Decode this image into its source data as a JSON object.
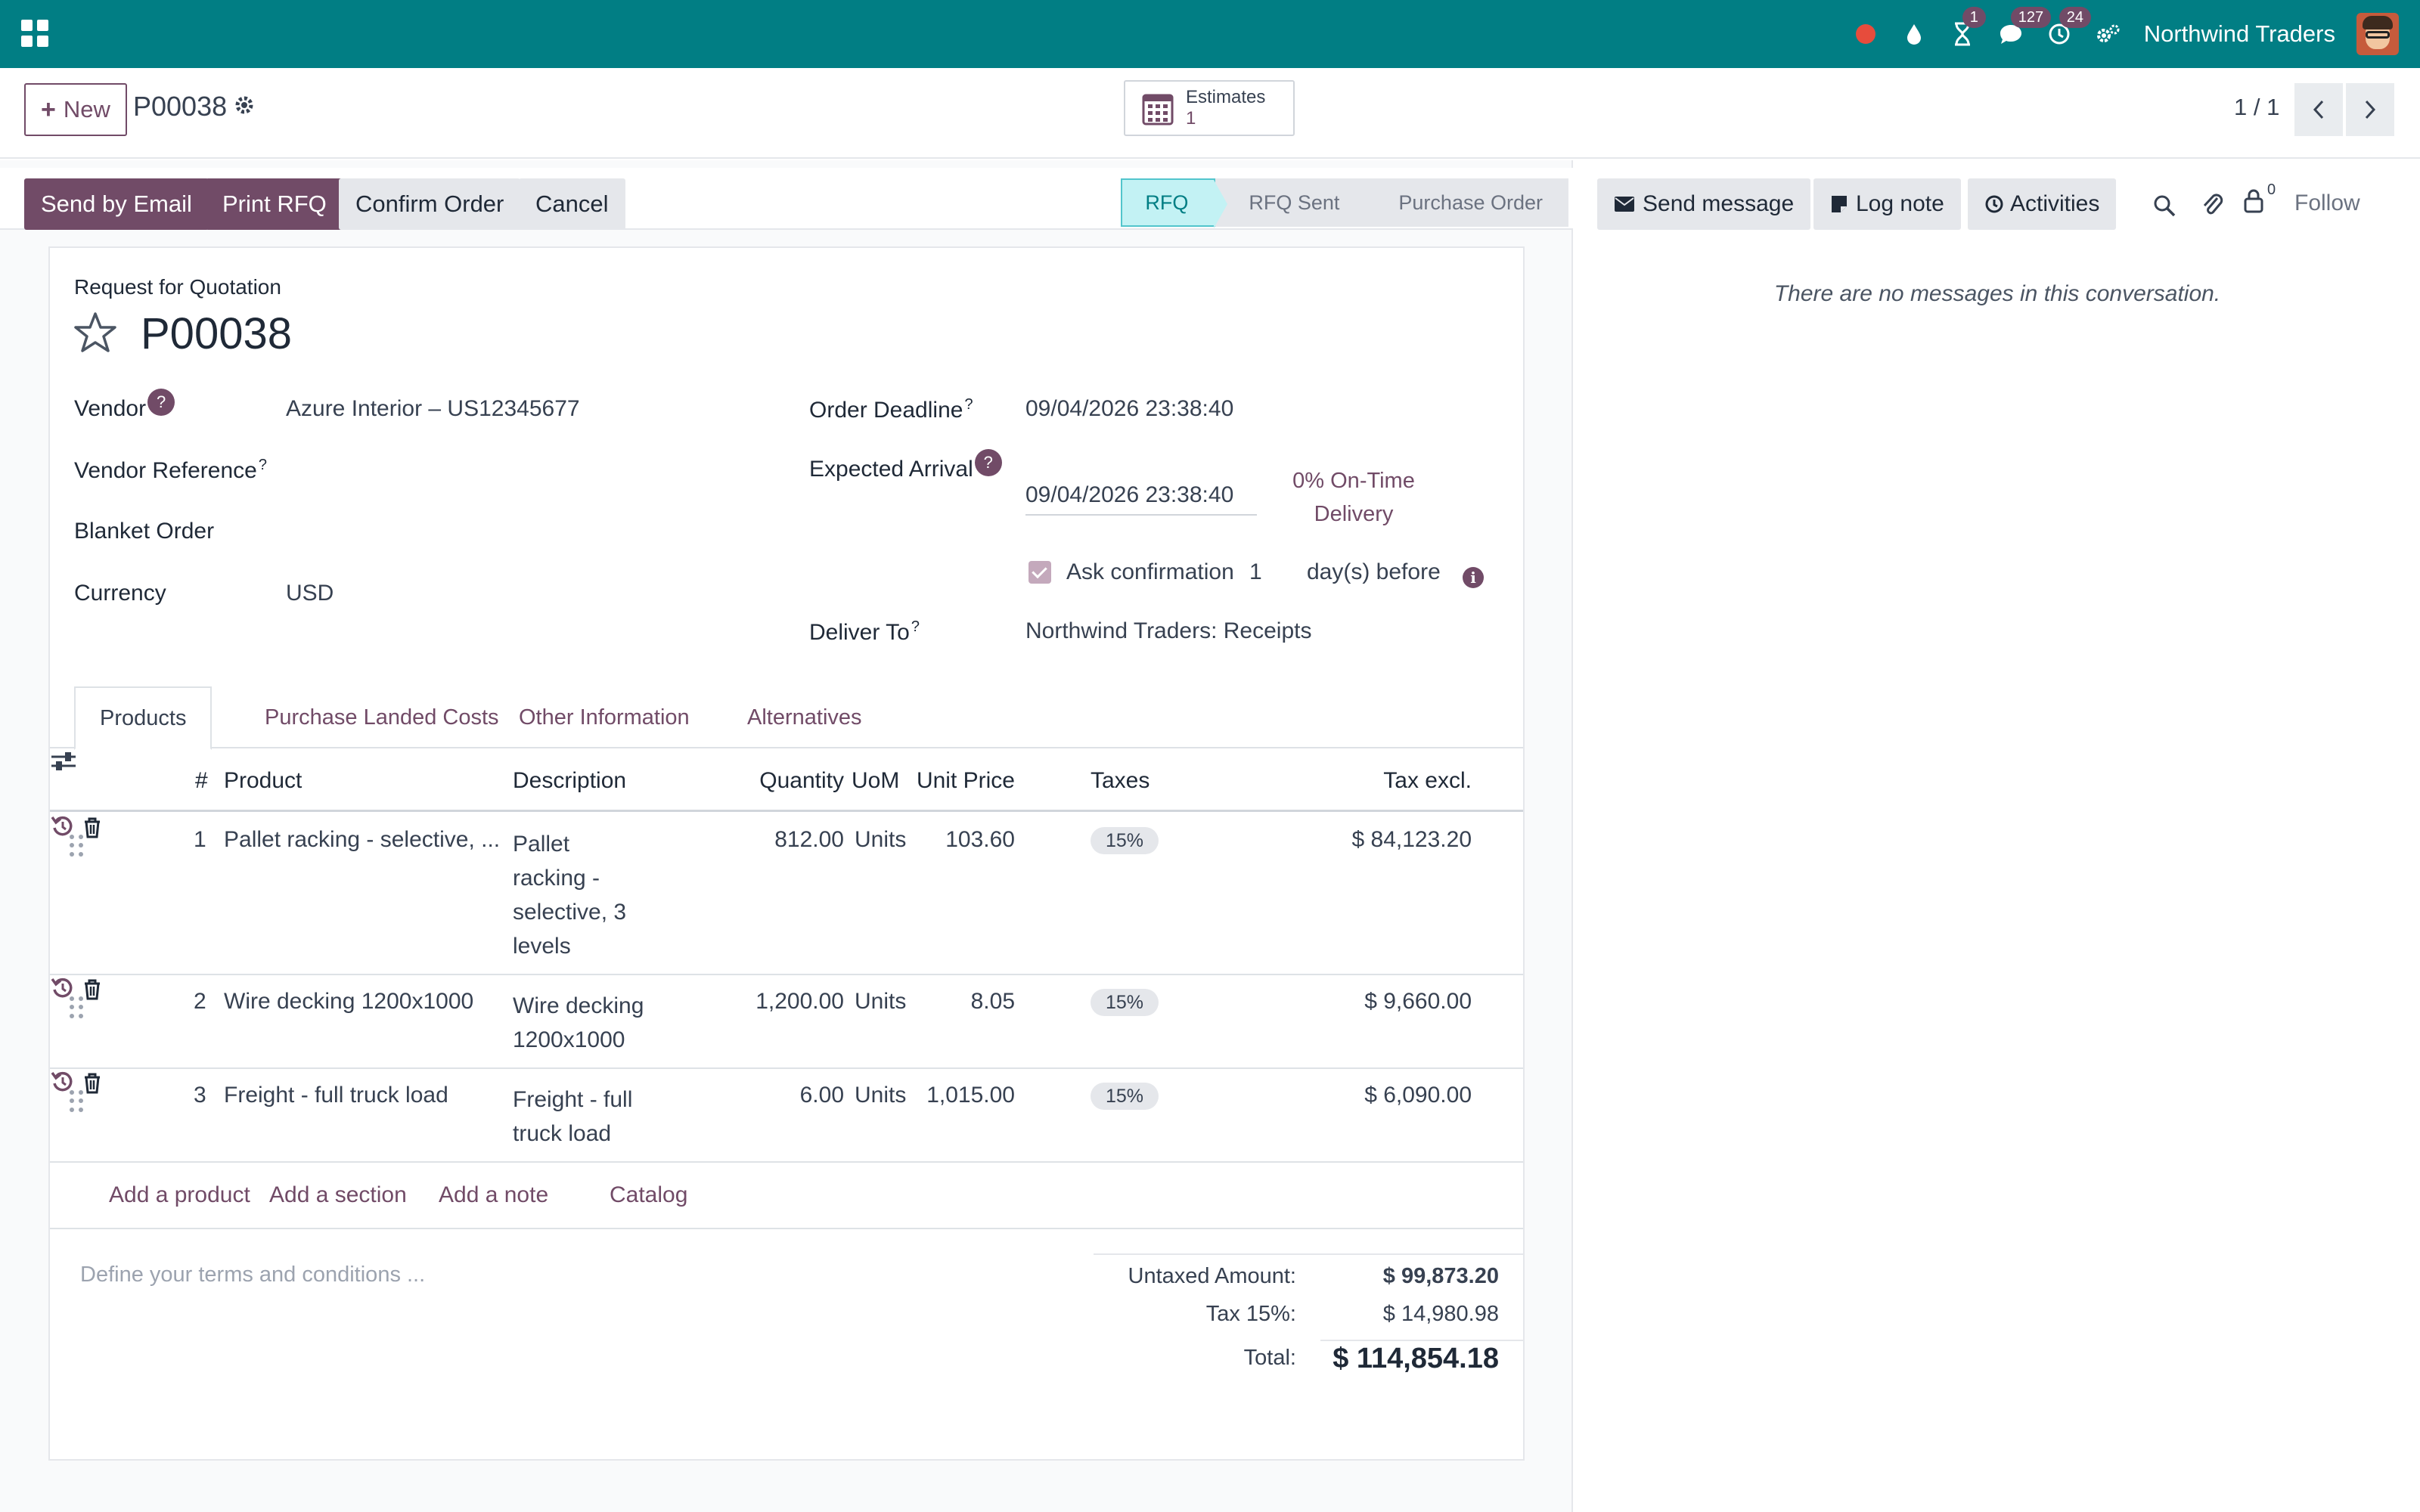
{
  "navbar": {
    "company": "Northwind Traders",
    "badges": {
      "activities": "1",
      "messages": "127",
      "timesheet": "24"
    },
    "colors": {
      "navbar_bg": "#017e84",
      "accent": "#714b67"
    }
  },
  "control_panel": {
    "new_label": "New",
    "record_name": "P00038",
    "smart_button": {
      "label": "Estimates",
      "value": "1"
    },
    "pager": "1 / 1"
  },
  "statusbar": {
    "buttons": [
      "Send by Email",
      "Print RFQ",
      "Confirm Order",
      "Cancel"
    ],
    "stages": [
      "RFQ",
      "RFQ Sent",
      "Purchase Order"
    ],
    "current_stage": "RFQ"
  },
  "form": {
    "kind": "Request for Quotation",
    "title": "P00038",
    "fields": {
      "vendor_label": "Vendor",
      "vendor_value": "Azure Interior – US12345677",
      "vendor_ref_label": "Vendor Reference",
      "blanket_label": "Blanket Order",
      "currency_label": "Currency",
      "currency_value": "USD",
      "deadline_label": "Order Deadline",
      "deadline_value": "09/04/2026 23:38:40",
      "arrival_label": "Expected Arrival",
      "arrival_value": "09/04/2026 23:38:40",
      "on_time_delivery": "0% On-Time Delivery",
      "ask_confirmation_label": "Ask confirmation",
      "ask_confirmation_days": "1",
      "ask_confirmation_suffix": "day(s) before",
      "deliver_to_label": "Deliver To",
      "deliver_to_value": "Northwind Traders: Receipts",
      "help_mark": "?",
      "sup_mark": "?"
    },
    "tabs": [
      "Products",
      "Purchase Landed Costs",
      "Other Information",
      "Alternatives"
    ],
    "active_tab": "Products",
    "table": {
      "columns": [
        "#",
        "Product",
        "Description",
        "Quantity",
        "UoM",
        "Unit Price",
        "Taxes",
        "Tax excl."
      ],
      "rows": [
        {
          "num": "1",
          "product": "Pallet racking - selective, ...",
          "description": [
            "Pallet",
            "racking -",
            "selective, 3",
            "levels"
          ],
          "quantity": "812.00",
          "uom": "Units",
          "unit_price": "103.60",
          "taxes": "15%",
          "subtotal": "$ 84,123.20"
        },
        {
          "num": "2",
          "product": "Wire decking 1200x1000",
          "description": [
            "Wire decking",
            "1200x1000"
          ],
          "quantity": "1,200.00",
          "uom": "Units",
          "unit_price": "8.05",
          "taxes": "15%",
          "subtotal": "$ 9,660.00"
        },
        {
          "num": "3",
          "product": "Freight - full truck load",
          "description": [
            "Freight - full",
            "truck load"
          ],
          "quantity": "6.00",
          "uom": "Units",
          "unit_price": "1,015.00",
          "taxes": "15%",
          "subtotal": "$ 6,090.00"
        }
      ]
    },
    "add_line": {
      "product": "Add a product",
      "section": "Add a section",
      "note": "Add a note",
      "catalog": "Catalog"
    },
    "terms_placeholder": "Define your terms and conditions ...",
    "totals": {
      "untaxed_label": "Untaxed Amount:",
      "untaxed_value": "$ 99,873.20",
      "tax_label": "Tax 15%:",
      "tax_value": "$ 14,980.98",
      "total_label": "Total:",
      "total_value": "$ 114,854.18"
    }
  },
  "chatter": {
    "send_message": "Send message",
    "log_note": "Log note",
    "activities": "Activities",
    "followers_count": "0",
    "follow": "Follow",
    "empty": "There are no messages in this conversation."
  }
}
